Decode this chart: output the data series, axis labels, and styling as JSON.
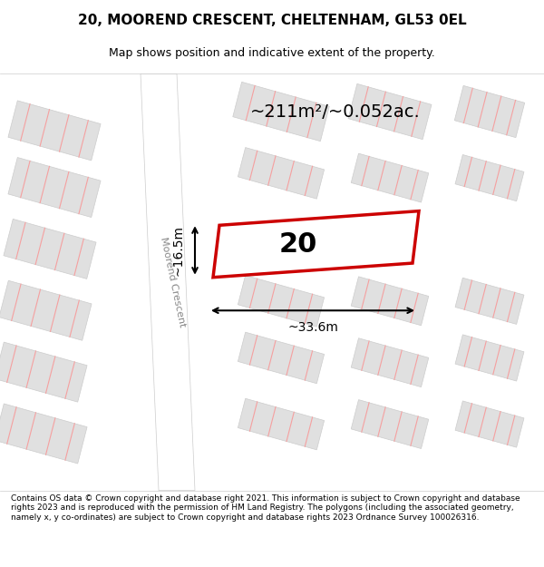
{
  "title_line1": "20, MOOREND CRESCENT, CHELTENHAM, GL53 0EL",
  "title_line2": "Map shows position and indicative extent of the property.",
  "area_text": "~211m²/~0.052ac.",
  "label_number": "20",
  "dim_width": "~33.6m",
  "dim_height": "~16.5m",
  "street_name": "Moorend Crescent",
  "footer_text": "Contains OS data © Crown copyright and database right 2021. This information is subject to Crown copyright and database rights 2023 and is reproduced with the permission of HM Land Registry. The polygons (including the associated geometry, namely x, y co-ordinates) are subject to Crown copyright and database rights 2023 Ordnance Survey 100026316.",
  "bg_color": "#f5f5f5",
  "map_bg": "#ffffff",
  "road_color": "#ffffff",
  "block_color": "#e0e0e0",
  "pink_line_color": "#f0a0a0",
  "red_plot_color": "#cc0000",
  "title_bg": "#ffffff",
  "footer_bg": "#ffffff"
}
